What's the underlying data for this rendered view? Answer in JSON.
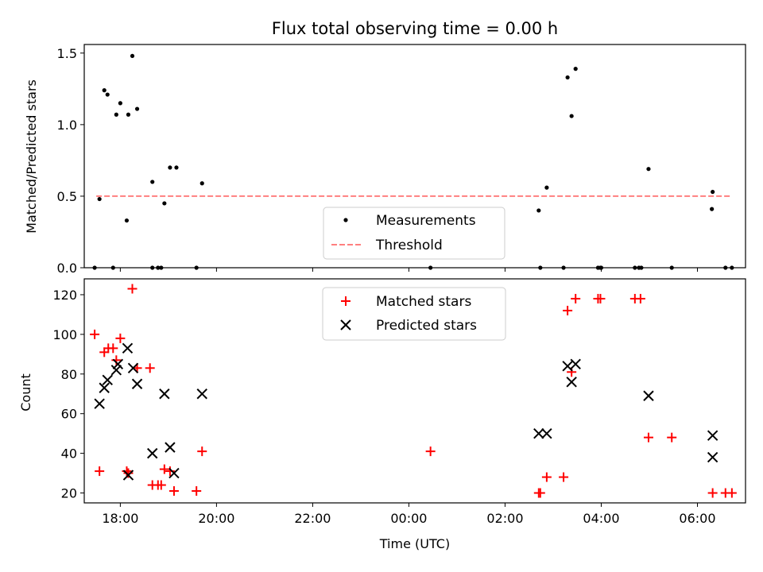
{
  "chart_data": [
    {
      "type": "scatter",
      "title": "Flux total observing time = 0.00 h",
      "xlabel": "",
      "ylabel": "Matched/Predicted stars",
      "ylim": [
        0,
        1.56
      ],
      "xlim": [
        "17:15",
        "07:00"
      ],
      "x_axis_type": "time",
      "yticks": [
        0.0,
        0.5,
        1.0,
        1.5
      ],
      "ytick_labels": [
        "0.0",
        "0.5",
        "1.0",
        "1.5"
      ],
      "legend_position": "lower-center",
      "colors": {
        "measurements": "#000000",
        "threshold": "#ff7f7f"
      },
      "series": [
        {
          "name": "Measurements",
          "marker": "dot",
          "points": [
            [
              "17:28",
              0.0
            ],
            [
              "17:34",
              0.48
            ],
            [
              "17:40",
              1.24
            ],
            [
              "17:44",
              1.21
            ],
            [
              "17:51",
              0.0
            ],
            [
              "17:55",
              1.07
            ],
            [
              "18:00",
              1.15
            ],
            [
              "18:08",
              0.33
            ],
            [
              "18:10",
              1.07
            ],
            [
              "18:15",
              1.48
            ],
            [
              "18:21",
              1.11
            ],
            [
              "18:40",
              0.6
            ],
            [
              "18:40",
              0.0
            ],
            [
              "18:47",
              0.0
            ],
            [
              "18:51",
              0.0
            ],
            [
              "18:55",
              0.45
            ],
            [
              "19:02",
              0.7
            ],
            [
              "19:10",
              0.7
            ],
            [
              "19:35",
              0.0
            ],
            [
              "19:42",
              0.59
            ],
            [
              "00:27",
              0.0
            ],
            [
              "02:42",
              0.4
            ],
            [
              "02:44",
              0.0
            ],
            [
              "02:52",
              0.56
            ],
            [
              "03:13",
              0.0
            ],
            [
              "03:18",
              1.33
            ],
            [
              "03:23",
              1.06
            ],
            [
              "03:28",
              1.39
            ],
            [
              "03:56",
              0.0
            ],
            [
              "03:59",
              0.0
            ],
            [
              "04:00",
              0.0
            ],
            [
              "04:42",
              0.0
            ],
            [
              "04:47",
              0.0
            ],
            [
              "04:50",
              0.0
            ],
            [
              "04:59",
              0.69
            ],
            [
              "05:28",
              0.0
            ],
            [
              "06:18",
              0.41
            ],
            [
              "06:19",
              0.53
            ],
            [
              "06:35",
              0.0
            ],
            [
              "06:43",
              0.0
            ]
          ]
        },
        {
          "name": "Threshold",
          "style": "dashed-line",
          "points": [
            [
              "17:30",
              0.5
            ],
            [
              "06:42",
              0.5
            ]
          ]
        }
      ]
    },
    {
      "type": "scatter",
      "title": "",
      "xlabel": "Time (UTC)",
      "ylabel": "Count",
      "ylim": [
        15,
        128
      ],
      "xlim": [
        "17:15",
        "07:00"
      ],
      "x_axis_type": "time",
      "xticks": [
        "18:00",
        "20:00",
        "22:00",
        "00:00",
        "02:00",
        "04:00",
        "06:00"
      ],
      "yticks": [
        20,
        40,
        60,
        80,
        100,
        120
      ],
      "ytick_labels": [
        "20",
        "40",
        "60",
        "80",
        "100",
        "120"
      ],
      "legend_position": "upper-center",
      "colors": {
        "matched": "#ff0000",
        "predicted": "#000000"
      },
      "series": [
        {
          "name": "Matched stars",
          "marker": "plus",
          "points": [
            [
              "17:28",
              100
            ],
            [
              "17:34",
              31
            ],
            [
              "17:40",
              91
            ],
            [
              "17:45",
              93
            ],
            [
              "17:51",
              93
            ],
            [
              "17:55",
              87
            ],
            [
              "18:00",
              98
            ],
            [
              "18:08",
              31
            ],
            [
              "18:10",
              30
            ],
            [
              "18:15",
              123
            ],
            [
              "18:21",
              83
            ],
            [
              "18:37",
              83
            ],
            [
              "18:40",
              24
            ],
            [
              "18:47",
              24
            ],
            [
              "18:51",
              24
            ],
            [
              "18:55",
              32
            ],
            [
              "19:02",
              31
            ],
            [
              "19:07",
              21
            ],
            [
              "19:35",
              21
            ],
            [
              "19:42",
              41
            ],
            [
              "00:27",
              41
            ],
            [
              "02:42",
              20
            ],
            [
              "02:44",
              20
            ],
            [
              "02:52",
              28
            ],
            [
              "03:13",
              28
            ],
            [
              "03:18",
              112
            ],
            [
              "03:23",
              81
            ],
            [
              "03:28",
              118
            ],
            [
              "03:56",
              118
            ],
            [
              "03:59",
              118
            ],
            [
              "04:42",
              118
            ],
            [
              "04:49",
              118
            ],
            [
              "04:59",
              48
            ],
            [
              "05:28",
              48
            ],
            [
              "06:19",
              20
            ],
            [
              "06:35",
              20
            ],
            [
              "06:43",
              20
            ]
          ]
        },
        {
          "name": "Predicted stars",
          "marker": "x",
          "points": [
            [
              "17:34",
              65
            ],
            [
              "17:40",
              73
            ],
            [
              "17:44",
              77
            ],
            [
              "17:55",
              82
            ],
            [
              "17:57",
              85
            ],
            [
              "18:09",
              93
            ],
            [
              "18:10",
              29
            ],
            [
              "18:16",
              83
            ],
            [
              "18:21",
              75
            ],
            [
              "18:40",
              40
            ],
            [
              "18:55",
              70
            ],
            [
              "19:02",
              43
            ],
            [
              "19:07",
              30
            ],
            [
              "19:42",
              70
            ],
            [
              "02:42",
              50
            ],
            [
              "02:52",
              50
            ],
            [
              "03:18",
              84
            ],
            [
              "03:23",
              76
            ],
            [
              "03:28",
              85
            ],
            [
              "04:59",
              69
            ],
            [
              "06:19",
              49
            ],
            [
              "06:19",
              38
            ]
          ]
        }
      ]
    }
  ]
}
